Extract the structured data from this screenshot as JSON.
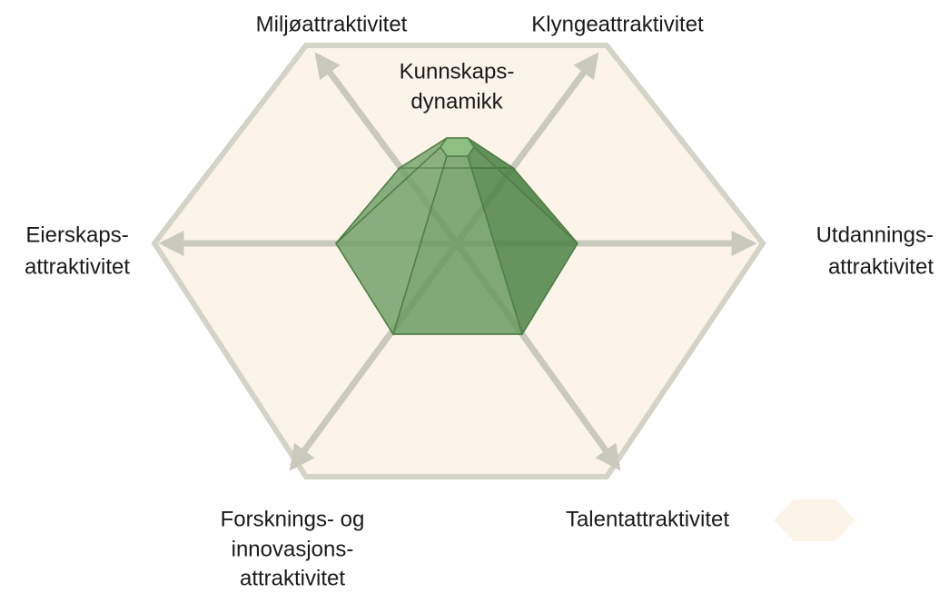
{
  "center": {
    "lines": [
      "Kunnskaps-",
      "dynamikk"
    ]
  },
  "dimensions": [
    {
      "lines": [
        "Miljøattraktivitet"
      ]
    },
    {
      "lines": [
        "Klyngeattraktivitet"
      ]
    },
    {
      "lines": [
        "Utdannings-",
        "attraktivitet"
      ]
    },
    {
      "lines": [
        "Talentattraktivitet"
      ]
    },
    {
      "lines": [
        "Forsknings- og",
        "innovasjons-",
        "attraktivitet"
      ]
    },
    {
      "lines": [
        "Eierskaps-",
        "attraktivitet"
      ]
    }
  ]
}
